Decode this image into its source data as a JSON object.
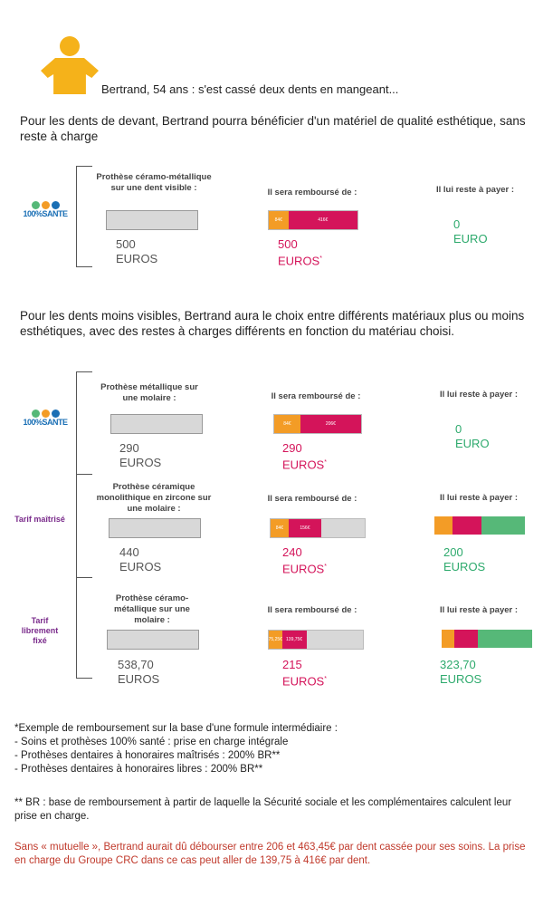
{
  "intro": "Bertrand, 54 ans : s'est cassé deux dents en mangeant...",
  "section1": {
    "text": "Pour les dents de devant, Bertrand pourra bénéficier d'un matériel de qualité esthétique, sans reste à charge",
    "logo": "100%SANTE",
    "row": {
      "title": "Prothèse céramo-métallique sur une dent visible :",
      "price": "500",
      "price_unit": "EUROS",
      "reimb_label": "Il sera remboursé de :",
      "seg1": "84€",
      "seg2": "416€",
      "reimb_value": "500",
      "reimb_unit": "EUROS",
      "reste_label": "Il lui reste à payer :",
      "reste_value": "0",
      "reste_unit": "EURO"
    }
  },
  "section2": {
    "text": "Pour les dents moins visibles, Bertrand aura le choix entre différents matériaux plus ou moins esthétiques, avec des restes à charges différents en fonction du matériau choisi.",
    "rows": [
      {
        "side": "100%SANTE",
        "title": "Prothèse métallique sur une molaire :",
        "price": "290",
        "price_unit": "EUROS",
        "reimb_label": "Il sera remboursé de :",
        "seg1": "84€",
        "seg2": "206€",
        "reimb_value": "290",
        "reimb_unit": "EUROS",
        "reste_label": "Il lui reste à payer :",
        "reste_value": "0",
        "reste_unit": "EURO"
      },
      {
        "side": "Tarif maîtrisé",
        "title": "Prothèse céramique monolithique en zircone sur une molaire :",
        "price": "440",
        "price_unit": "EUROS",
        "reimb_label": "Il sera remboursé de :",
        "seg1": "84€",
        "seg2": "156€",
        "reimb_value": "240",
        "reimb_unit": "EUROS",
        "reste_label": "Il lui reste à payer :",
        "reste_value": "200",
        "reste_unit": "EUROS"
      },
      {
        "side": "Tarif librement fixé",
        "title": "Prothèse céramo-métallique sur une molaire :",
        "price": "538,70",
        "price_unit": "EUROS",
        "reimb_label": "Il sera remboursé de :",
        "seg1": "75,25€",
        "seg2": "139,75€",
        "reimb_value": "215",
        "reimb_unit": "EUROS",
        "reste_label": "Il lui reste à payer :",
        "reste_value": "323,70",
        "reste_unit": "EUROS"
      }
    ]
  },
  "footnotes": {
    "line1": "*Exemple de remboursement sur la base d'une formule intermédiaire :",
    "line2": "- Soins et prothèses 100% santé : prise en charge intégrale",
    "line3": "- Prothèses dentaires à honoraires maîtrisés : 200% BR**",
    "line4": "- Prothèses dentaires à honoraires libres : 200% BR**",
    "br": "** BR : base de remboursement à partir de laquelle la Sécurité sociale et les complémentaires calculent leur prise en charge.",
    "red": "Sans « mutuelle », Bertrand aurait dû débourser entre 206 et 463,45€ par dent cassée pour ses soins. La prise en charge du Groupe CRC dans ce cas peut aller de 139,75 à 416€ par dent."
  },
  "colors": {
    "orange": "#f39c26",
    "pink": "#d4145a",
    "green": "#56b878",
    "blue": "#1a6fb5",
    "purple": "#7a2b8b"
  },
  "icons": [
    "person-icon",
    "logo-100-sante"
  ]
}
